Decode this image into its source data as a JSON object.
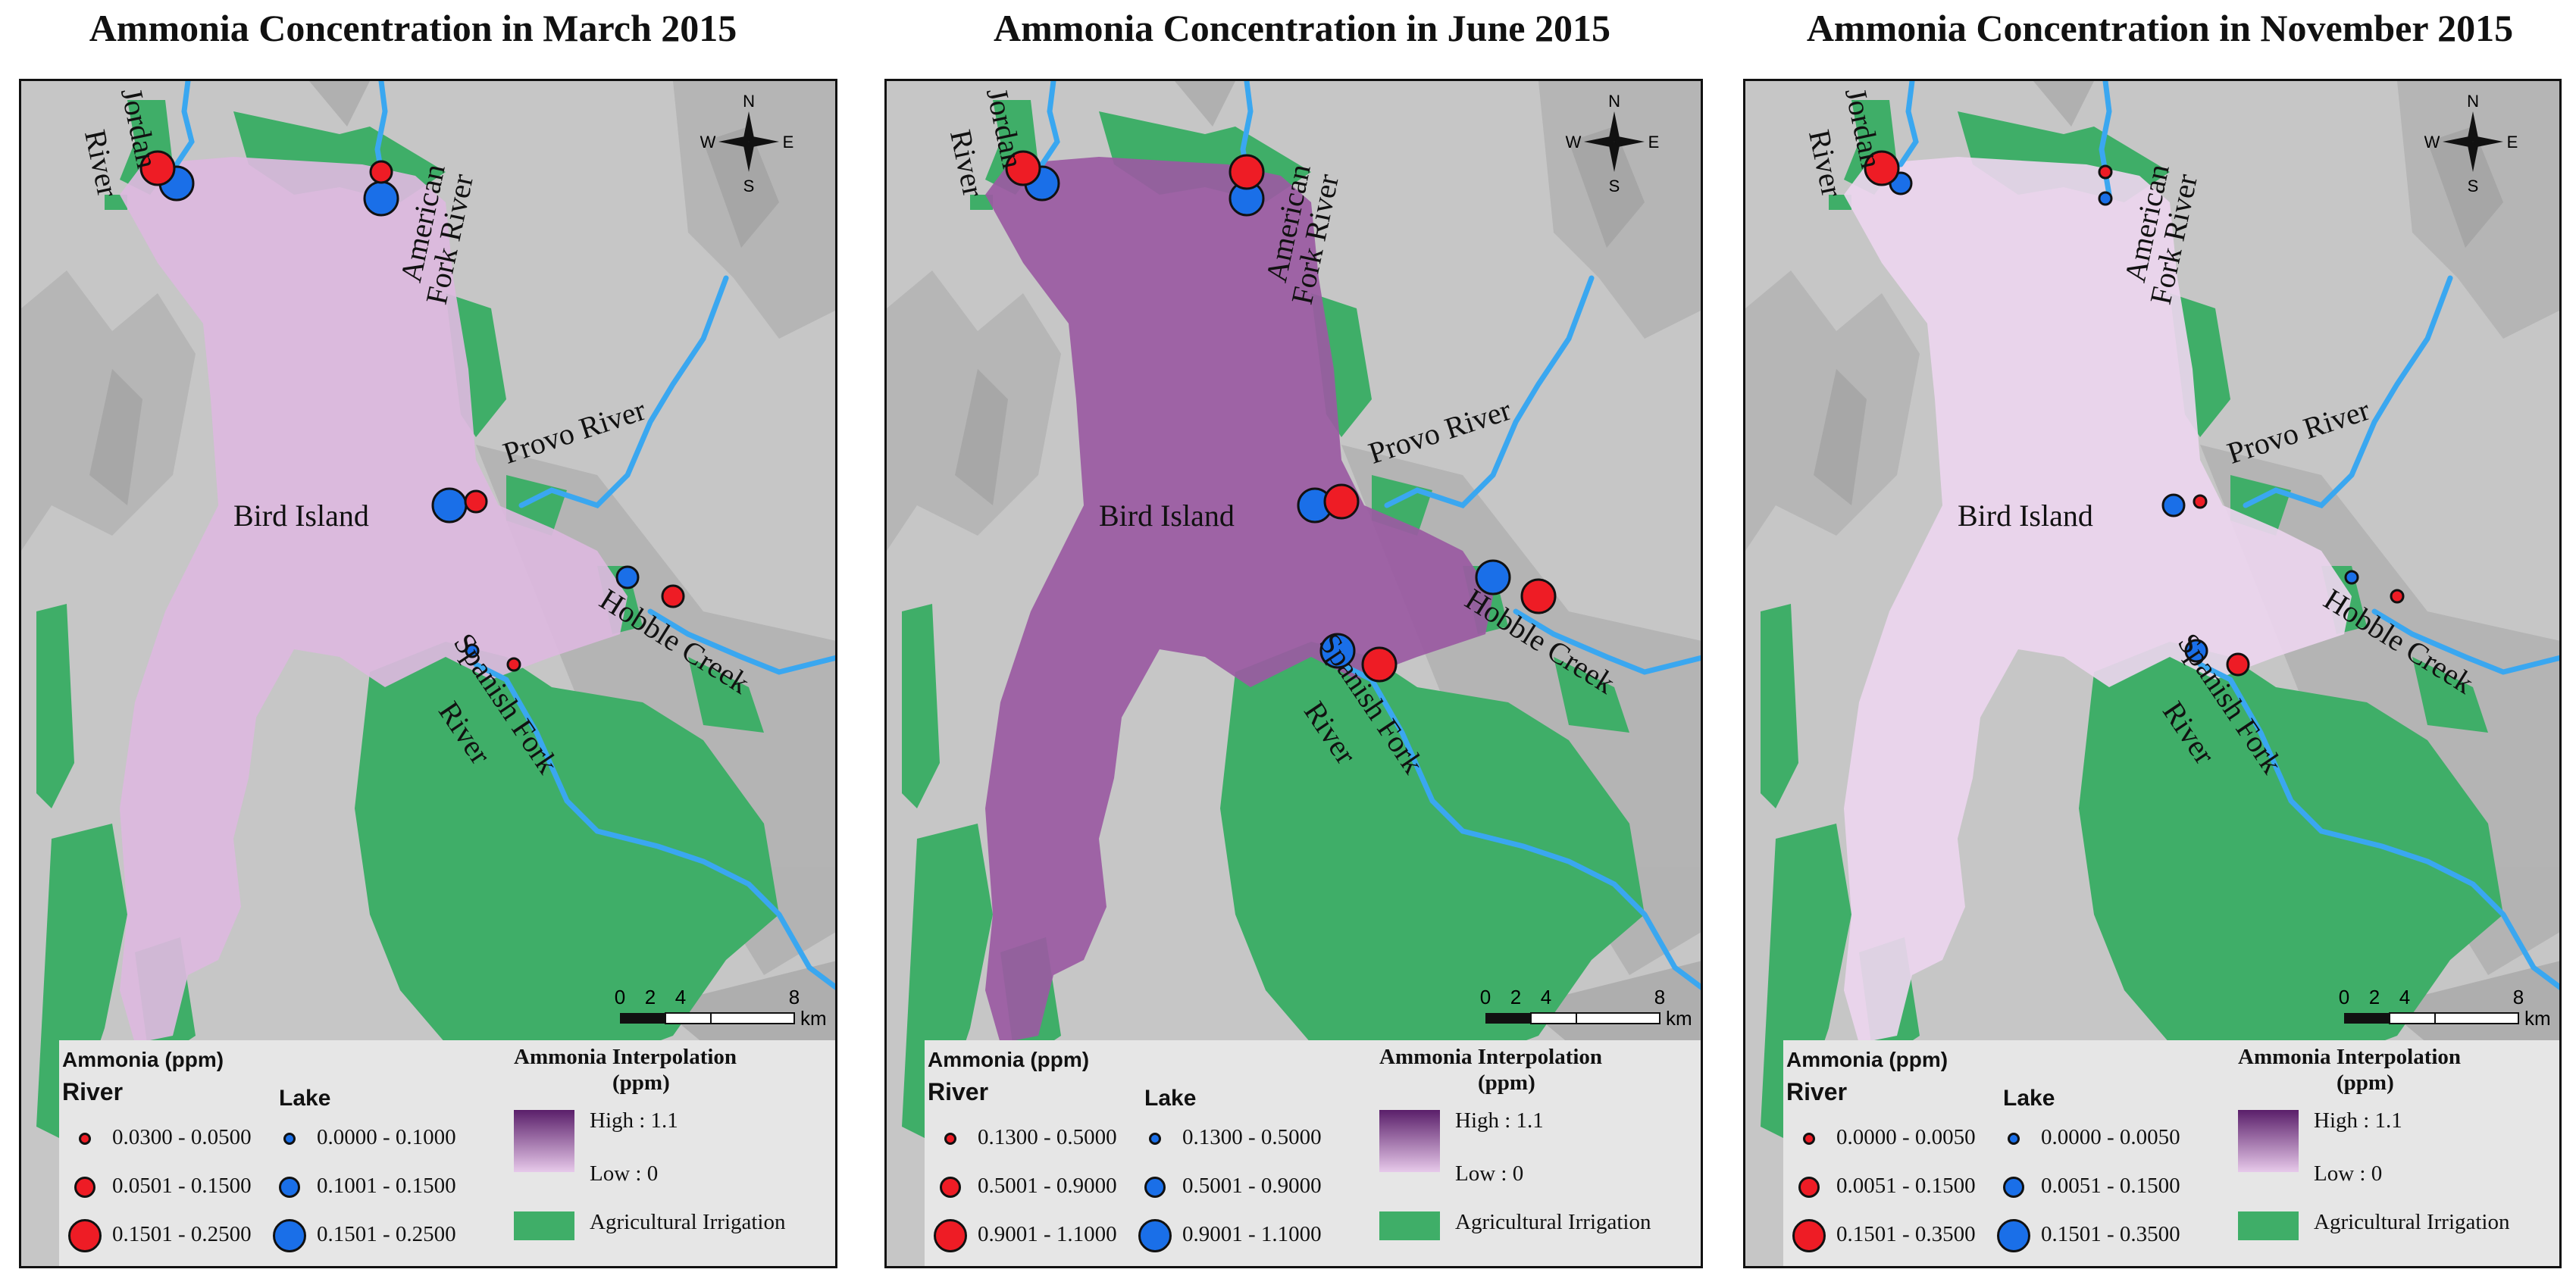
{
  "panels": [
    {
      "title": "Ammonia Concentration in March 2015",
      "lake_tint": "#dcb8de",
      "legend": {
        "heading": "Ammonia (ppm)",
        "river_label": "River",
        "lake_label": "Lake",
        "river_classes": [
          "0.0300 - 0.0500",
          "0.0501 - 0.1500",
          "0.1501 - 0.2500"
        ],
        "lake_classes": [
          "0.0000 - 0.1000",
          "0.1001 - 0.1500",
          "0.1501 - 0.2500"
        ],
        "interp_title_1": "Ammonia Interpolation",
        "interp_title_2": "(ppm)",
        "high": "High : 1.1",
        "low": "Low : 0",
        "ag": "Agricultural Irrigation"
      }
    },
    {
      "title": "Ammonia Concentration in June 2015",
      "lake_tint": "#9a5aa2",
      "legend": {
        "heading": "Ammonia (ppm)",
        "river_label": "River",
        "lake_label": "Lake",
        "river_classes": [
          "0.1300 - 0.5000",
          "0.5001 - 0.9000",
          "0.9001 - 1.1000"
        ],
        "lake_classes": [
          "0.1300 - 0.5000",
          "0.5001 - 0.9000",
          "0.9001 - 1.1000"
        ],
        "interp_title_1": "Ammonia Interpolation",
        "interp_title_2": "(ppm)",
        "high": "High : 1.1",
        "low": "Low : 0",
        "ag": "Agricultural Irrigation"
      }
    },
    {
      "title": "Ammonia Concentration in November 2015",
      "lake_tint": "#ecd5ee",
      "legend": {
        "heading": "Ammonia (ppm)",
        "river_label": "River",
        "lake_label": "Lake",
        "river_classes": [
          "0.0000 - 0.0050",
          "0.0051 - 0.1500",
          "0.1501 - 0.3500"
        ],
        "lake_classes": [
          "0.0000 - 0.0050",
          "0.0051 - 0.1500",
          "0.1501 - 0.3500"
        ],
        "interp_title_1": "Ammonia Interpolation",
        "interp_title_2": "(ppm)",
        "high": "High : 1.1",
        "low": "Low : 0",
        "ag": "Agricultural Irrigation"
      }
    }
  ],
  "places": {
    "jordan": "Jordan",
    "river": "River",
    "american": "American",
    "fork_river": "Fork River",
    "provo": "Provo River",
    "bird": "Bird Island",
    "hobble": "Hobble Creek",
    "spanish": "Spanish Fork",
    "spanish_river": "River"
  },
  "compass": {
    "n": "N",
    "s": "S",
    "e": "E",
    "w": "W"
  },
  "scale": {
    "t0": "0",
    "t2": "2",
    "t4": "4",
    "t8": "8",
    "unit": "km"
  },
  "colors": {
    "river_marker": "#ee1c25",
    "lake_marker": "#1a6fe8",
    "agriculture": "#3fae68",
    "water": "#3aa7f0",
    "terrain": "#c9c9c9"
  },
  "samples": [
    {
      "site": "Jordan River",
      "river": [
        3,
        3,
        3
      ],
      "lake": [
        3,
        3,
        2
      ]
    },
    {
      "site": "American Fork River",
      "river": [
        2,
        3,
        1
      ],
      "lake": [
        3,
        3,
        1
      ]
    },
    {
      "site": "Provo River",
      "river": [
        2,
        3,
        1
      ],
      "lake": [
        3,
        3,
        2
      ]
    },
    {
      "site": "Hobble Creek",
      "river": [
        2,
        3,
        1
      ],
      "lake": [
        2,
        3,
        1
      ]
    },
    {
      "site": "Spanish Fork River",
      "river": [
        1,
        3,
        2
      ],
      "lake": [
        1,
        3,
        2
      ]
    }
  ]
}
